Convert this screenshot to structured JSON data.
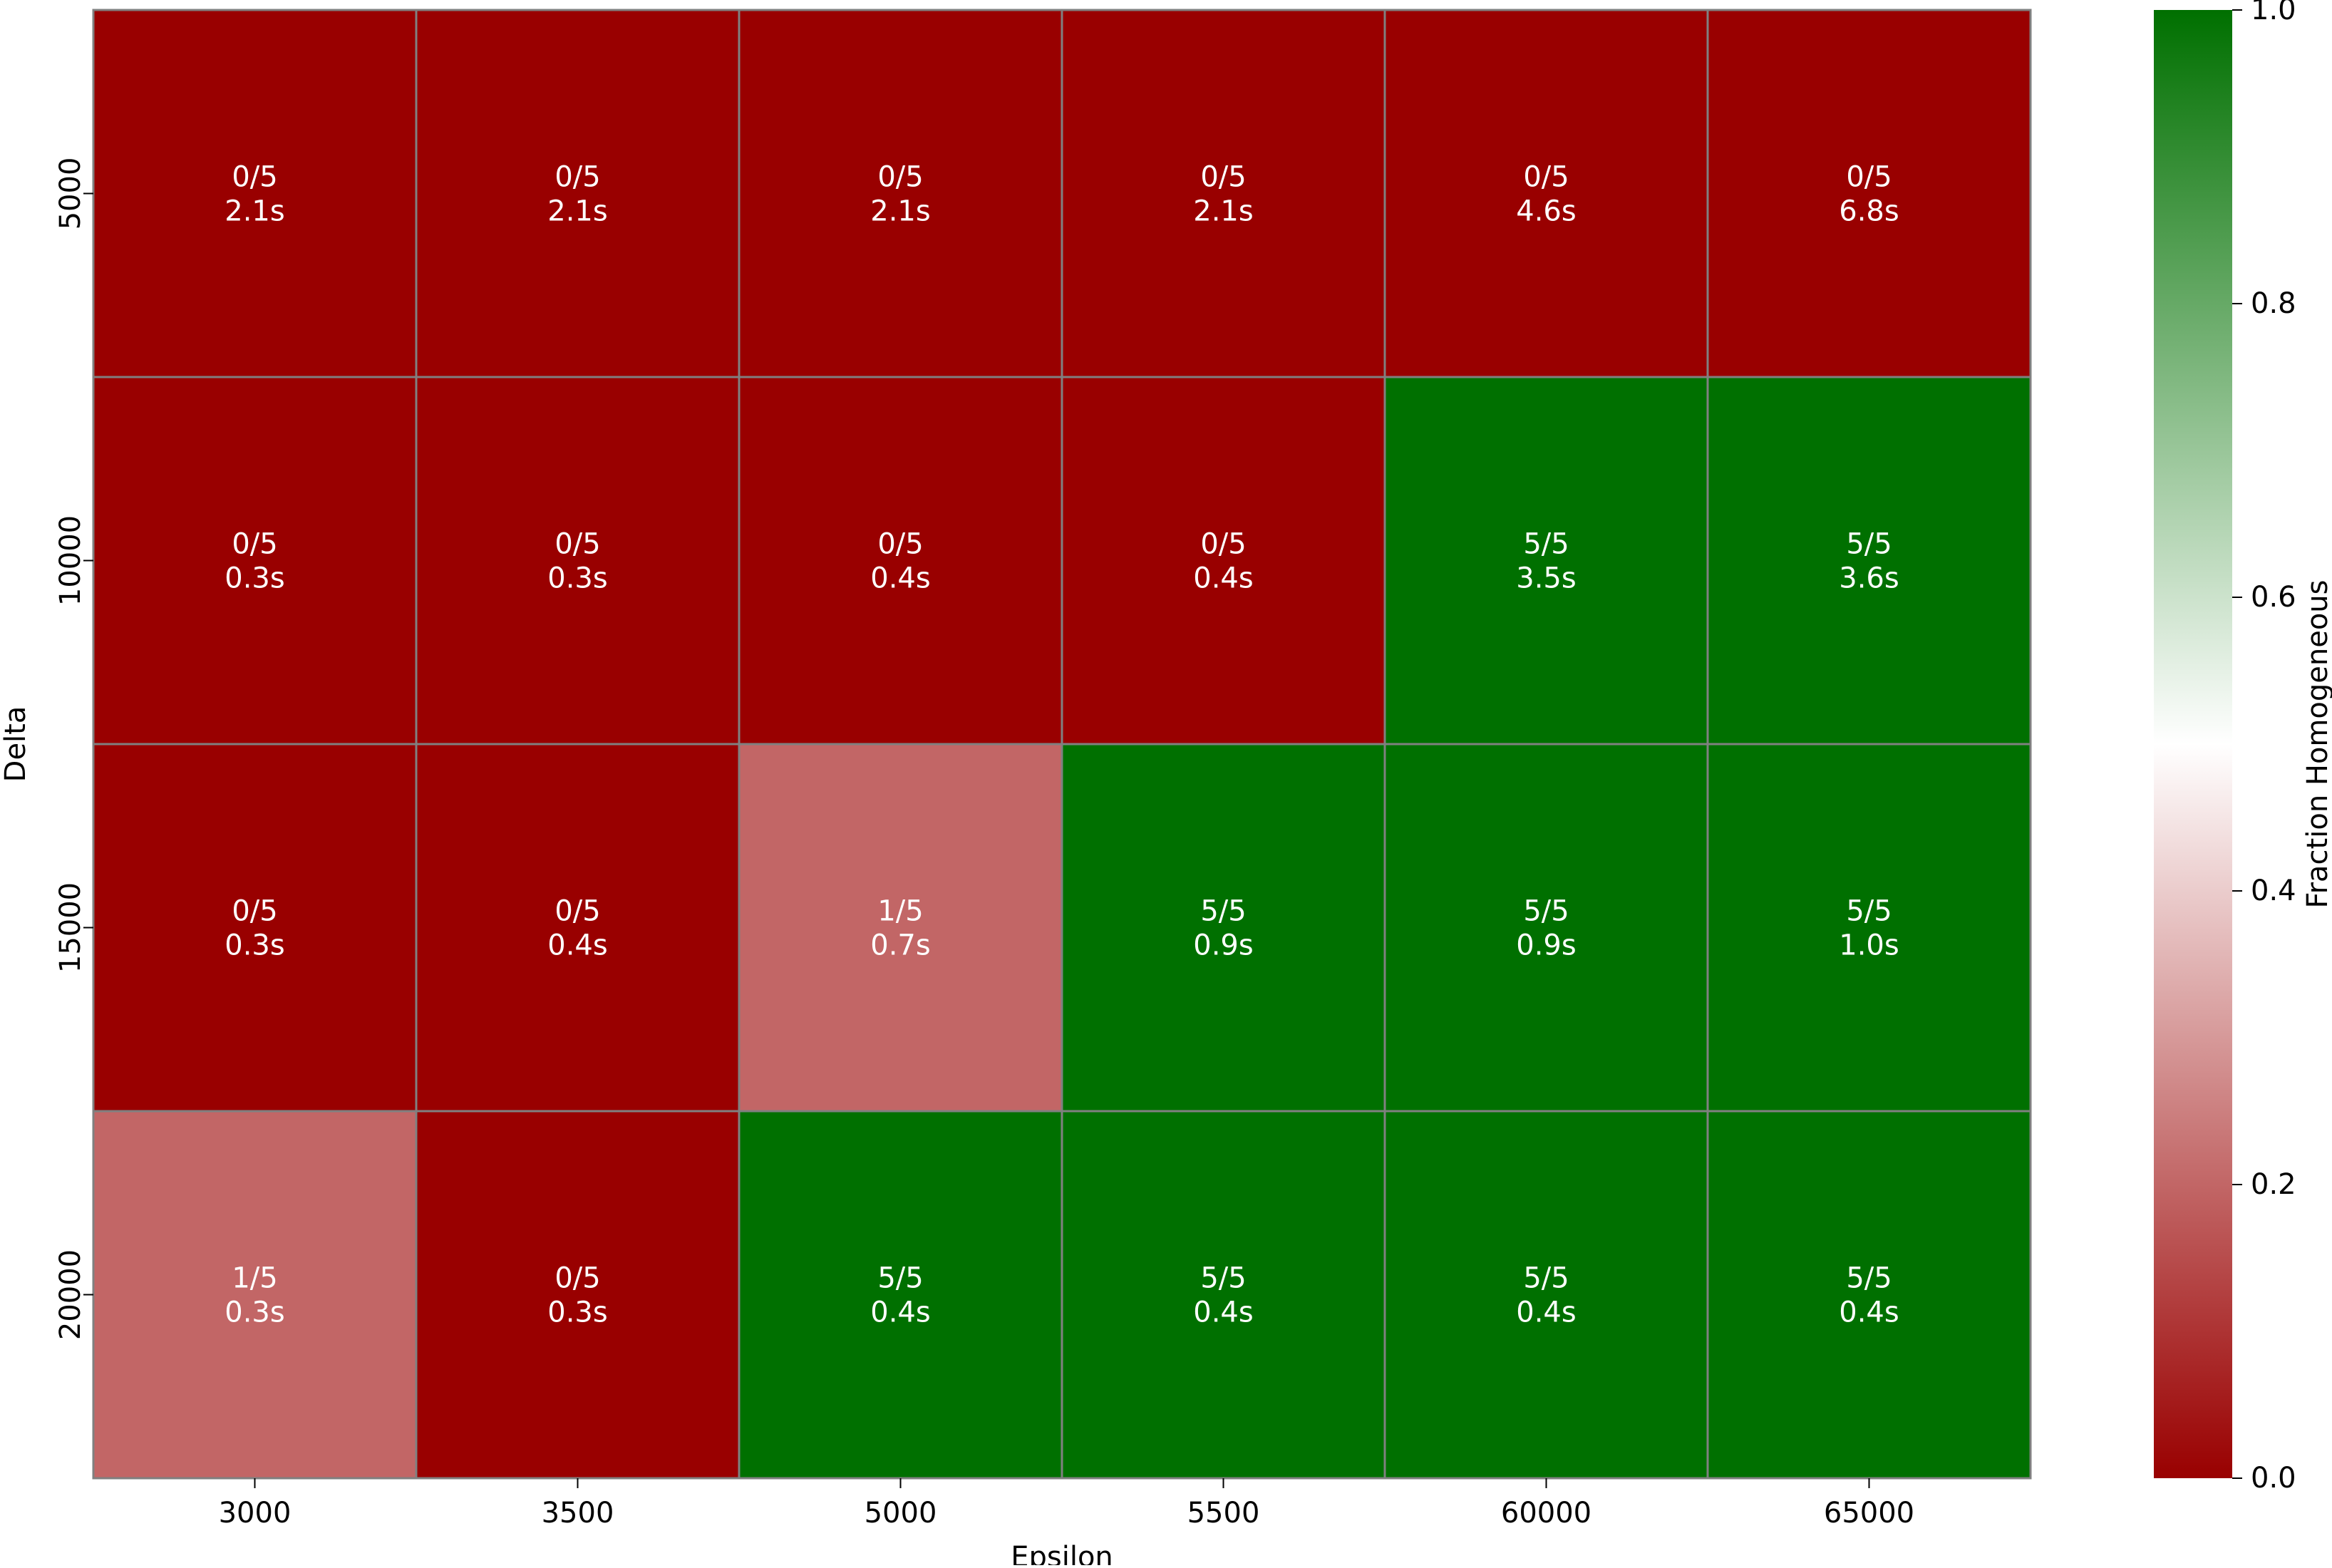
{
  "chart_data": {
    "type": "heatmap",
    "title": "",
    "xlabel": "Epsilon",
    "ylabel": "Delta",
    "x_categories": [
      "3000",
      "3500",
      "5000",
      "5500",
      "60000",
      "65000"
    ],
    "y_categories": [
      "5000",
      "10000",
      "15000",
      "20000"
    ],
    "values": [
      [
        0.0,
        0.0,
        0.0,
        0.0,
        0.0,
        0.0
      ],
      [
        0.0,
        0.0,
        0.0,
        0.0,
        1.0,
        1.0
      ],
      [
        0.0,
        0.0,
        0.2,
        1.0,
        1.0,
        1.0
      ],
      [
        0.2,
        0.0,
        1.0,
        1.0,
        1.0,
        1.0
      ]
    ],
    "annotations": [
      [
        [
          "0/5",
          "2.1s"
        ],
        [
          "0/5",
          "2.1s"
        ],
        [
          "0/5",
          "2.1s"
        ],
        [
          "0/5",
          "2.1s"
        ],
        [
          "0/5",
          "4.6s"
        ],
        [
          "0/5",
          "6.8s"
        ]
      ],
      [
        [
          "0/5",
          "0.3s"
        ],
        [
          "0/5",
          "0.3s"
        ],
        [
          "0/5",
          "0.4s"
        ],
        [
          "0/5",
          "0.4s"
        ],
        [
          "5/5",
          "3.5s"
        ],
        [
          "5/5",
          "3.6s"
        ]
      ],
      [
        [
          "0/5",
          "0.3s"
        ],
        [
          "0/5",
          "0.4s"
        ],
        [
          "1/5",
          "0.7s"
        ],
        [
          "5/5",
          "0.9s"
        ],
        [
          "5/5",
          "0.9s"
        ],
        [
          "5/5",
          "1.0s"
        ]
      ],
      [
        [
          "1/5",
          "0.3s"
        ],
        [
          "0/5",
          "0.3s"
        ],
        [
          "5/5",
          "0.4s"
        ],
        [
          "5/5",
          "0.4s"
        ],
        [
          "5/5",
          "0.4s"
        ],
        [
          "5/5",
          "0.4s"
        ]
      ]
    ],
    "colorbar": {
      "label": "Fraction Homogeneous",
      "range": [
        0.0,
        1.0
      ],
      "ticks": [
        "0.0",
        "0.2",
        "0.4",
        "0.6",
        "0.8",
        "1.0"
      ],
      "colors": {
        "low": "#990000",
        "mid": "#ffffff",
        "high": "#007000"
      }
    },
    "cell_border_color": "#808080",
    "annotation_color": "#ffffff",
    "grid": false
  }
}
